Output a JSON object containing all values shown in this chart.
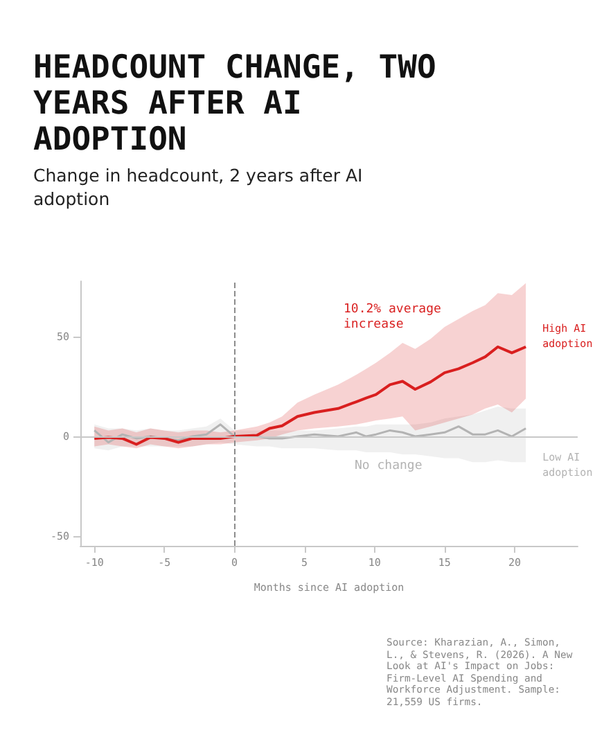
{
  "chart_data": {
    "type": "line",
    "title": "HEADCOUNT CHANGE, TWO YEARS AFTER AI ADOPTION",
    "subtitle": "Change in headcount, 2 years after AI adoption",
    "xlabel": "Months since AI adoption",
    "x": [
      -10,
      -9,
      -8,
      -7,
      -6,
      -5,
      -4,
      -3,
      -2,
      -1,
      0,
      1.6,
      2.5,
      3.4,
      4.5,
      5.7,
      7.4,
      8.7,
      9.4,
      10.1,
      11.1,
      12,
      12.9,
      14,
      15,
      16,
      17,
      17.9,
      18.8,
      19.8,
      20.8
    ],
    "series": [
      {
        "name": "Low AI adoption",
        "color": "#b3b3b3",
        "values": [
          3,
          -3,
          1,
          -1,
          0,
          -1,
          -2,
          0,
          1,
          6,
          0,
          0,
          -1,
          -1,
          0,
          1,
          0,
          2,
          0,
          1,
          3,
          2,
          0,
          1,
          2,
          5,
          1,
          1,
          3,
          0,
          4
        ],
        "upper": [
          6,
          4,
          4,
          3,
          4,
          3,
          3,
          4,
          5,
          9,
          3,
          3,
          3,
          3,
          3,
          3,
          4,
          5,
          5,
          6,
          6,
          6,
          6,
          7,
          9,
          10,
          11,
          13,
          15,
          14,
          14
        ],
        "lower": [
          -6,
          -7,
          -5,
          -5,
          -5,
          -5,
          -5,
          -5,
          -4,
          -3,
          -4,
          -5,
          -5,
          -6,
          -6,
          -6,
          -7,
          -7,
          -8,
          -8,
          -8,
          -9,
          -9,
          -10,
          -11,
          -11,
          -13,
          -13,
          -12,
          -13,
          -13
        ]
      },
      {
        "name": "High AI adoption",
        "color": "#d91f1f",
        "values": [
          -1,
          -0.5,
          -1,
          -4,
          -0.5,
          -1,
          -3,
          -1,
          -1,
          -1,
          0,
          0.5,
          4,
          5.3,
          10,
          12,
          14,
          17.4,
          19.3,
          21,
          26,
          27.7,
          23.7,
          27.4,
          32,
          34,
          37,
          40,
          45,
          42,
          45
        ],
        "upper": [
          5,
          3,
          4,
          2,
          4,
          3,
          2,
          3,
          3,
          2,
          3,
          5,
          7,
          10,
          17,
          21,
          26,
          31,
          34,
          37,
          42,
          47,
          44,
          49,
          55,
          59,
          63,
          66,
          72,
          71,
          77
        ],
        "lower": [
          -5,
          -4,
          -5,
          -6,
          -4,
          -5,
          -6,
          -5,
          -4,
          -4,
          -3,
          -2,
          -1,
          1,
          3,
          4,
          5,
          6,
          7,
          8,
          9,
          10,
          3,
          5,
          7,
          9,
          11,
          14,
          16,
          12,
          19
        ]
      }
    ],
    "xlim": [
      -11,
      24.5
    ],
    "xticks": [
      -10,
      -5,
      0,
      5,
      10,
      15,
      20
    ],
    "ylim": [
      -55,
      78
    ],
    "yticks": [
      -50,
      0,
      50
    ],
    "ref_lines": [
      {
        "axis": "x",
        "value": 0,
        "label": null,
        "color": "#8c8c8c",
        "line_style": "dashed"
      },
      {
        "axis": "y",
        "value": 0,
        "label": null,
        "color": "#c8c8c8",
        "line_style": "solid"
      }
    ],
    "annotations": [
      "10.2% average increase",
      "No change",
      "Source: Kharazian, A., Simon, L., & Stevens, R. (2026). A New Look at AI's Impact on Jobs: Firm-Level AI Spending and Workforce Adjustment. Sample: 21,559 US firms."
    ],
    "grid": false,
    "legend": false,
    "marker": "none",
    "line_style": "solid"
  }
}
